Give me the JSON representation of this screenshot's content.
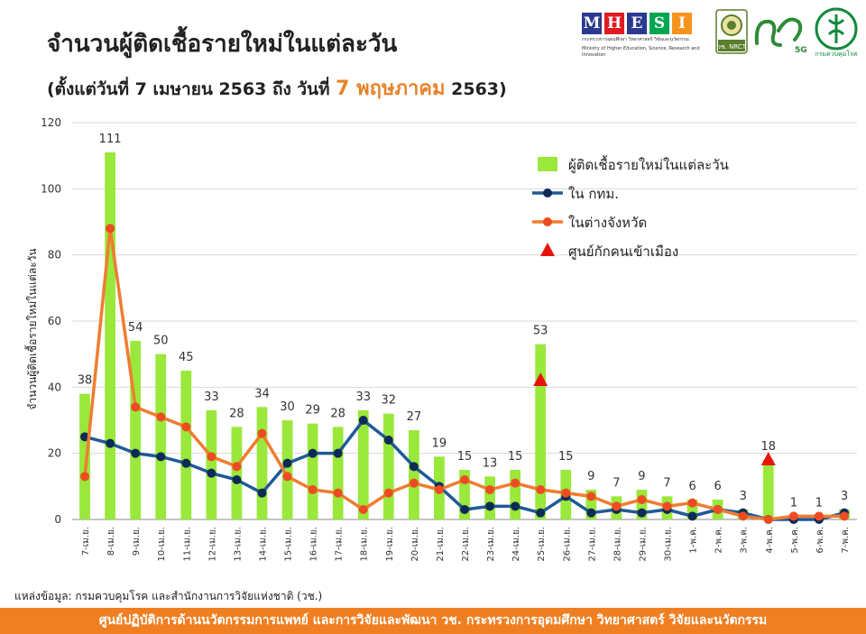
{
  "title": "จำนวนผู้ติดเชื้อรายใหม่ในแต่ละวัน",
  "subtitle": {
    "prefix": "(ตั้งแต่วันที่ 7 เมษายน 2563 ถึง วันที่ ",
    "highlight": "7 พฤษภาคม",
    "suffix": " 2563)"
  },
  "logos": {
    "mhesi_letters": [
      "M",
      "H",
      "E",
      "S",
      "I"
    ],
    "mhesi_colors": [
      "#2b3990",
      "#e11b22",
      "#2b3990",
      "#00a651",
      "#f7941d"
    ],
    "mhesi_tagline": "กระทรวงการอุดมศึกษา วิทยาศาสตร์ วิจัยและนวัตกรรม",
    "mhesi_tagline_en": "Ministry of Higher Education, Science, Research and Innovation",
    "nrct_label": "วช. NRCT",
    "fiveg_text": "5G",
    "ddc_label": "กรมควบคุมโรค"
  },
  "chart_data": {
    "type": "bar",
    "ylabel": "จำนวนผู้ติดเชื้อรายใหม่ในแต่ละวัน",
    "ylim": [
      0,
      120
    ],
    "yticks": [
      0,
      20,
      40,
      60,
      80,
      100,
      120
    ],
    "grid": true,
    "legend_position": "top-right",
    "categories": [
      "7-เม.ย.",
      "8-เม.ย.",
      "9-เม.ย.",
      "10-เม.ย.",
      "11-เม.ย.",
      "12-เม.ย.",
      "13-เม.ย.",
      "14-เม.ย.",
      "15-เม.ย.",
      "16-เม.ย.",
      "17-เม.ย.",
      "18-เม.ย.",
      "19-เม.ย.",
      "20-เม.ย.",
      "21-เม.ย.",
      "22-เม.ย.",
      "23-เม.ย.",
      "24-เม.ย.",
      "25-เม.ย.",
      "26-เม.ย.",
      "27-เม.ย.",
      "28-เม.ย.",
      "29-เม.ย.",
      "30-เม.ย.",
      "1-พ.ค.",
      "2-พ.ค.",
      "3-พ.ค.",
      "4-พ.ค.",
      "5-พ.ค.",
      "6-พ.ค.",
      "7-พ.ค."
    ],
    "series": [
      {
        "name": "ผู้ติดเชื้อรายใหม่ในแต่ละวัน",
        "kind": "bar",
        "color": "#9ae83b",
        "values": [
          38,
          111,
          54,
          50,
          45,
          33,
          28,
          34,
          30,
          29,
          28,
          33,
          32,
          27,
          19,
          15,
          13,
          15,
          53,
          15,
          9,
          7,
          9,
          7,
          6,
          6,
          3,
          18,
          1,
          1,
          3
        ]
      },
      {
        "name": "ใน กทม.",
        "kind": "line",
        "color": "#1f5a96",
        "marker": "#0f2a56",
        "values": [
          25,
          23,
          20,
          19,
          17,
          14,
          12,
          8,
          17,
          20,
          20,
          30,
          24,
          16,
          10,
          3,
          4,
          4,
          2,
          7,
          2,
          3,
          2,
          3,
          1,
          3,
          2,
          0,
          0,
          0,
          2
        ]
      },
      {
        "name": "ในต่างจังหวัด",
        "kind": "line",
        "color": "#ef7d31",
        "marker": "#ee4b23",
        "values": [
          13,
          88,
          34,
          31,
          28,
          19,
          16,
          26,
          13,
          9,
          8,
          3,
          8,
          11,
          9,
          12,
          9,
          11,
          9,
          8,
          7,
          4,
          6,
          4,
          5,
          3,
          1,
          0,
          1,
          1,
          1
        ]
      },
      {
        "name": "ศูนย์กักคนเข้าเมือง",
        "kind": "marker",
        "color": "#e8140c",
        "points": [
          {
            "index": 18,
            "value": 42
          },
          {
            "index": 27,
            "value": 18
          }
        ]
      }
    ]
  },
  "source": "แหล่งข้อมูล: กรมควบคุมโรค และสำนักงานการวิจัยแห่งชาติ (วช.)",
  "footer": "ศูนย์ปฏิบัติการด้านนวัตกรรมการแพทย์ และการวิจัยและพัฒนา วช.  กระทรวงการอุดมศึกษา วิทยาศาสตร์ วิจัยและนวัตกรรม"
}
